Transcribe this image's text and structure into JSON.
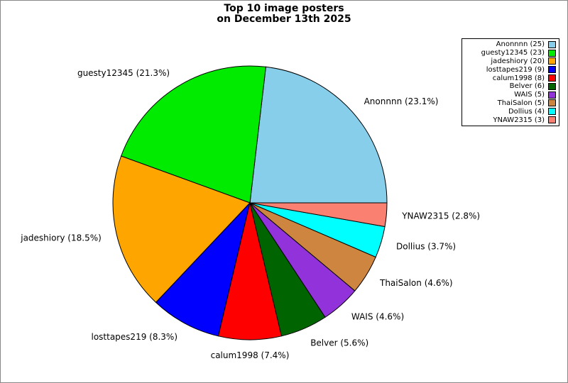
{
  "title": {
    "line1": "Top 10 image posters",
    "line2": "on December 13th 2025"
  },
  "chart_data": {
    "type": "pie",
    "total": 108,
    "direction": "counterclockwise",
    "start_angle_deg": 0,
    "legend_position": "top-right",
    "slices": [
      {
        "name": "Anonnnn",
        "count": 25,
        "pct": 23.1,
        "label": "Anonnnn (23.1%)",
        "legend_label": "Anonnnn (25)",
        "color": "#87CEEB"
      },
      {
        "name": "guesty12345",
        "count": 23,
        "pct": 21.3,
        "label": "guesty12345 (21.3%)",
        "legend_label": "guesty12345 (23)",
        "color": "#00EB00"
      },
      {
        "name": "jadeshiory",
        "count": 20,
        "pct": 18.5,
        "label": "jadeshiory (18.5%)",
        "legend_label": "jadeshiory (20)",
        "color": "#FFA500"
      },
      {
        "name": "losttapes219",
        "count": 9,
        "pct": 8.3,
        "label": "losttapes219 (8.3%)",
        "legend_label": "losttapes219 (9)",
        "color": "#0000FF"
      },
      {
        "name": "calum1998",
        "count": 8,
        "pct": 7.4,
        "label": "calum1998 (7.4%)",
        "legend_label": "calum1998 (8)",
        "color": "#FF0000"
      },
      {
        "name": "Belver",
        "count": 6,
        "pct": 5.6,
        "label": "Belver (5.6%)",
        "legend_label": "Belver (6)",
        "color": "#006400"
      },
      {
        "name": "WAIS",
        "count": 5,
        "pct": 4.6,
        "label": "WAIS (4.6%)",
        "legend_label": "WAIS (5)",
        "color": "#9232DB"
      },
      {
        "name": "ThaiSalon",
        "count": 5,
        "pct": 4.6,
        "label": "ThaiSalon (4.6%)",
        "legend_label": "ThaiSalon (5)",
        "color": "#CD853F"
      },
      {
        "name": "Dollius",
        "count": 4,
        "pct": 3.7,
        "label": "Dollius (3.7%)",
        "legend_label": "Dollius (4)",
        "color": "#00FFFF"
      },
      {
        "name": "YNAW2315",
        "count": 3,
        "pct": 2.8,
        "label": "YNAW2315 (2.8%)",
        "legend_label": "YNAW2315 (3)",
        "color": "#FA8072"
      }
    ]
  }
}
